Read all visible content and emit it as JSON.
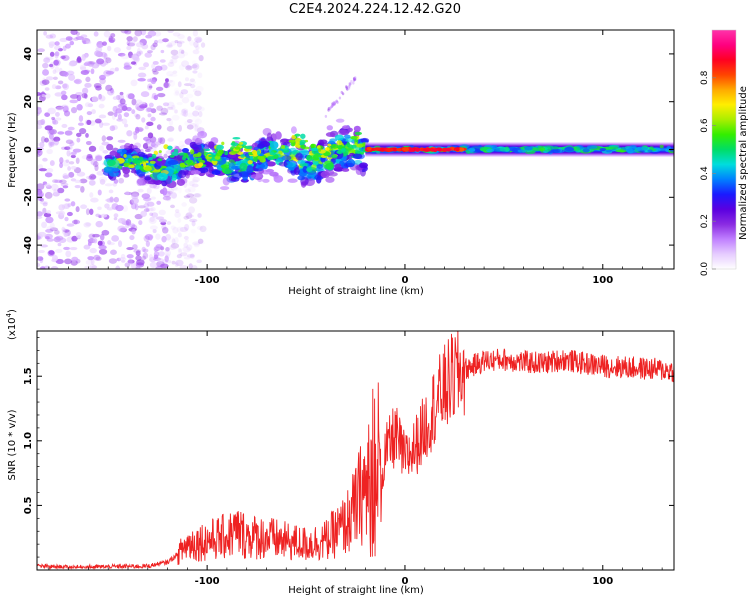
{
  "title": "C2E4.2024.224.12.42.G20",
  "colors": {
    "frame": "#000000",
    "snr_line": "#ee2222",
    "colormap": [
      "#ffffff",
      "#e6ccff",
      "#c080ff",
      "#8a2be2",
      "#5a00e0",
      "#1a1aff",
      "#0080ff",
      "#00dddd",
      "#00dd66",
      "#33ee00",
      "#aaee00",
      "#ffee00",
      "#ffaa00",
      "#ff4400",
      "#ff0022",
      "#ff0080",
      "#ff33aa"
    ]
  },
  "chart_data": [
    {
      "type": "heatmap",
      "title": "",
      "xlabel": "Height of straight line (km)",
      "ylabel": "Frequency (Hz)",
      "xlim": [
        -186,
        136
      ],
      "ylim": [
        -50,
        50
      ],
      "xticks": [
        -100,
        0,
        100
      ],
      "yticks": [
        -40,
        -20,
        0,
        20,
        40
      ],
      "colorbar": {
        "label": "Normalized spectral amplitude",
        "range": [
          0,
          1
        ],
        "ticks": [
          0.0,
          0.2,
          0.4,
          0.6,
          0.8
        ]
      },
      "features": [
        {
          "name": "diffuse noise",
          "x_range": [
            -186,
            -120
          ],
          "y_range": [
            -50,
            50
          ],
          "amplitude": 0.1
        },
        {
          "name": "broadening band",
          "x_range": [
            -150,
            -20
          ],
          "center_y_range": [
            -10,
            3
          ],
          "amplitude": 0.45
        },
        {
          "name": "faint streak",
          "x_range": [
            -40,
            -25
          ],
          "center_y_range": [
            15,
            30
          ],
          "amplitude": 0.08
        },
        {
          "name": "steady band",
          "x_range": [
            -20,
            136
          ],
          "center_y": 0,
          "half_width_hz": 3,
          "amplitude": 0.4
        },
        {
          "name": "peak core",
          "x_range": [
            -20,
            30
          ],
          "center_y": 0,
          "amplitude": 0.9
        }
      ]
    },
    {
      "type": "line",
      "title": "",
      "xlabel": "Height of straight line (km)",
      "ylabel": "SNR (10 * v/v)",
      "yscale_label": "(x10",
      "yscale_exponent": "4",
      "yscale_suffix": ")",
      "xlim": [
        -186,
        136
      ],
      "ylim": [
        0,
        18500
      ],
      "xticks": [
        -100,
        0,
        100
      ],
      "yticks": [
        0.5,
        1.0,
        1.5
      ],
      "ytick_labels": [
        "0.5",
        "1.0",
        "1.5"
      ],
      "series": [
        {
          "name": "SNR",
          "x": [
            -186,
            -170,
            -150,
            -130,
            -120,
            -115,
            -110,
            -100,
            -90,
            -85,
            -80,
            -70,
            -60,
            -50,
            -40,
            -30,
            -25,
            -22,
            -20,
            -17,
            -15,
            -12,
            -10,
            -8,
            -5,
            0,
            5,
            10,
            15,
            20,
            25,
            30,
            40,
            50,
            60,
            70,
            80,
            90,
            100,
            110,
            120,
            130,
            136
          ],
          "values": [
            300,
            200,
            250,
            300,
            600,
            1200,
            2000,
            2300,
            2600,
            3000,
            2600,
            2500,
            2200,
            2000,
            2300,
            3500,
            4800,
            6000,
            6500,
            6200,
            5500,
            6800,
            9000,
            9500,
            10500,
            8500,
            9500,
            11000,
            12800,
            14000,
            15000,
            15500,
            16200,
            16300,
            16100,
            16000,
            16300,
            16000,
            15800,
            15700,
            15600,
            15500,
            15400
          ]
        }
      ]
    }
  ]
}
